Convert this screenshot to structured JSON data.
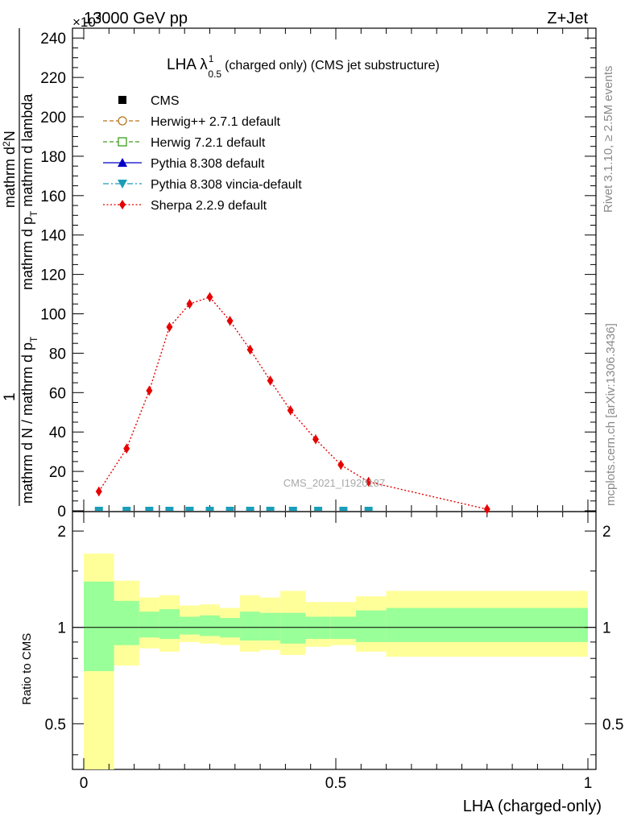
{
  "header": {
    "left": "13000 GeV pp",
    "right": "Z+Jet",
    "exponent": "×10",
    "exponent_power": "3"
  },
  "side": {
    "rivet": "Rivet 3.1.10, ≥ 2.5M events",
    "mcplots": "mcplots.cern.ch [arXiv:1306.3436]"
  },
  "title": {
    "main": "LHA λ",
    "sup": "1",
    "sub": "0.5",
    "rest": "(charged only) (CMS jet substructure)"
  },
  "watermark": "CMS_2021_I1920187",
  "ylabel": {
    "one": "1",
    "denominator": "mathrm d N / mathrm d p",
    "denominator_sub": "T",
    "numerator": "mathrm d",
    "numerator_sup": "2",
    "numerator_rest": "N",
    "den2": "mathrm d p",
    "den2_sub": "T",
    "den2_rest": " mathrm d lambda"
  },
  "ratio_ylabel": "Ratio to CMS",
  "xlabel": "LHA (charged-only)",
  "colors": {
    "CMS": "#000000",
    "Herwig++": "#b8751a",
    "Herwig7": "#3a9e1c",
    "Pythia": "#0000c8",
    "Vincia": "#1a9eb8",
    "Sherpa": "#e60000",
    "band_inner": "#99ff99",
    "band_outer": "#ffff99"
  },
  "chart_data": {
    "type": "line",
    "xlim": [
      0,
      1
    ],
    "ylim": [
      0,
      245
    ],
    "y_unit_factor": 1000,
    "x_ticks": [
      0,
      0.5,
      1
    ],
    "x_tick_labels": [
      "0",
      "0.5",
      "1"
    ],
    "y_ticks": [
      0,
      20,
      40,
      60,
      80,
      100,
      120,
      140,
      160,
      180,
      200,
      220,
      240
    ],
    "y_tick_labels": [
      "0",
      "20",
      "40",
      "60",
      "80",
      "100",
      "120",
      "140",
      "160",
      "180",
      "200",
      "220",
      "240"
    ],
    "legend": [
      {
        "name": "CMS",
        "marker": "square",
        "line": "none",
        "color_key": "CMS"
      },
      {
        "name": "Herwig++ 2.7.1 default",
        "marker": "circle-open",
        "line": "dashed",
        "color_key": "Herwig++"
      },
      {
        "name": "Herwig 7.2.1 default",
        "marker": "square-open",
        "line": "dashed",
        "color_key": "Herwig7"
      },
      {
        "name": "Pythia 8.308 default",
        "marker": "triangle-up",
        "line": "solid",
        "color_key": "Pythia"
      },
      {
        "name": "Pythia 8.308 vincia-default",
        "marker": "triangle-down",
        "line": "dashdot",
        "color_key": "Vincia"
      },
      {
        "name": "Sherpa 2.2.9 default",
        "marker": "diamond",
        "line": "dotted",
        "color_key": "Sherpa"
      }
    ],
    "series": [
      {
        "name": "Sherpa 2.2.9 default",
        "x": [
          0.03,
          0.085,
          0.13,
          0.17,
          0.21,
          0.25,
          0.29,
          0.33,
          0.37,
          0.41,
          0.46,
          0.51,
          0.565,
          0.8
        ],
        "y": [
          9.8,
          31.6,
          61.0,
          93.3,
          105.0,
          108.5,
          96.4,
          81.8,
          66.1,
          51.0,
          36.3,
          23.3,
          14.7,
          0.8
        ]
      },
      {
        "name": "MC markers near zero",
        "x": [
          0.03,
          0.085,
          0.13,
          0.17,
          0.21,
          0.25,
          0.29,
          0.33,
          0.37,
          0.415,
          0.465,
          0.515,
          0.565
        ],
        "y": [
          0,
          0,
          0,
          0,
          0,
          0,
          0,
          0,
          0,
          0,
          0,
          0,
          0
        ]
      }
    ],
    "ratio": {
      "ylim": [
        0.36,
        2.3
      ],
      "y_ticks": [
        0.5,
        1,
        2
      ],
      "y_tick_labels": [
        "0.5",
        "1",
        "2"
      ],
      "bin_edges": [
        0,
        0.06,
        0.11,
        0.15,
        0.19,
        0.23,
        0.27,
        0.31,
        0.35,
        0.39,
        0.44,
        0.49,
        0.54,
        0.6,
        1.0
      ],
      "inner_lo": [
        0.73,
        0.88,
        0.93,
        0.92,
        0.95,
        0.94,
        0.93,
        0.91,
        0.91,
        0.89,
        0.92,
        0.92,
        0.9,
        0.9
      ],
      "inner_hi": [
        1.39,
        1.21,
        1.12,
        1.14,
        1.08,
        1.09,
        1.07,
        1.12,
        1.11,
        1.11,
        1.08,
        1.08,
        1.13,
        1.15
      ],
      "outer_lo": [
        0.36,
        0.76,
        0.86,
        0.84,
        0.9,
        0.89,
        0.88,
        0.84,
        0.85,
        0.82,
        0.87,
        0.88,
        0.84,
        0.81
      ],
      "outer_hi": [
        1.7,
        1.4,
        1.24,
        1.26,
        1.17,
        1.18,
        1.15,
        1.26,
        1.24,
        1.3,
        1.2,
        1.2,
        1.25,
        1.3
      ]
    }
  }
}
